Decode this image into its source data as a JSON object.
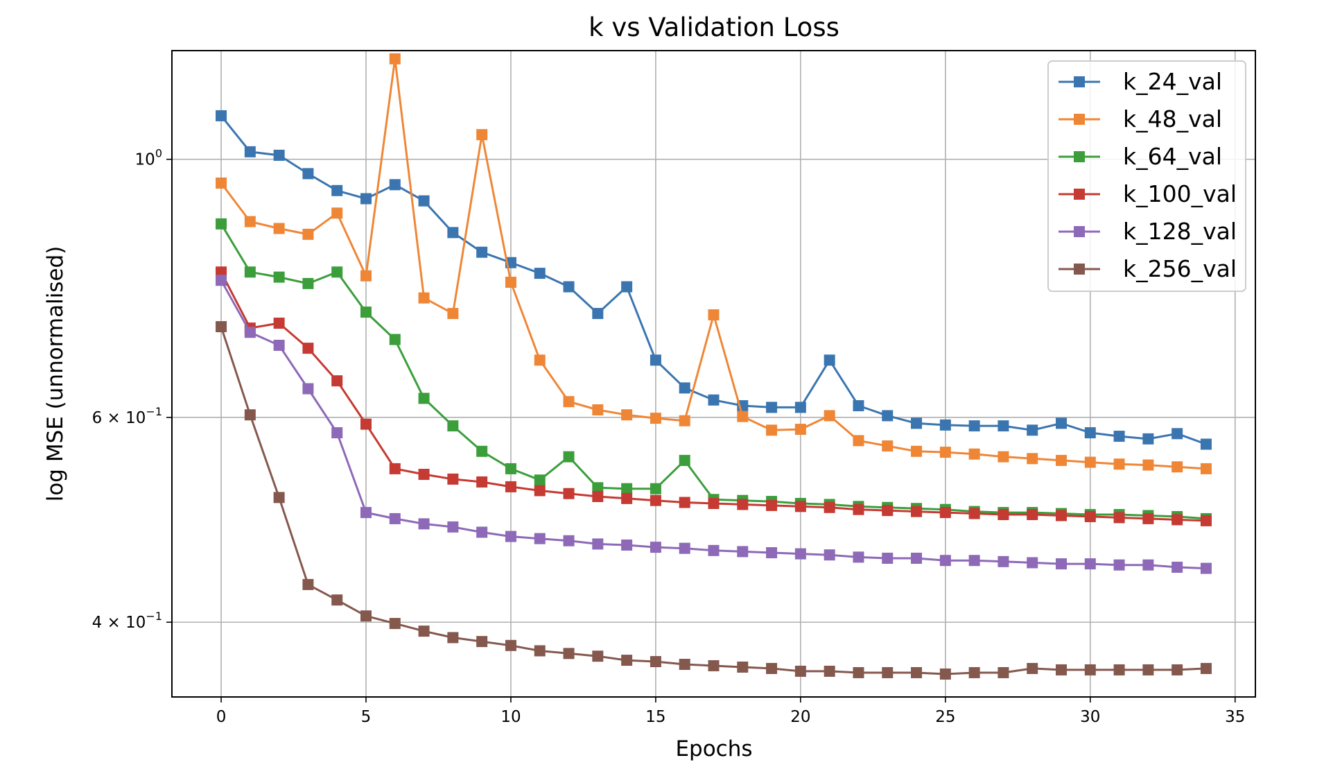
{
  "chart_data": {
    "type": "line",
    "title": "k vs Validation Loss",
    "xlabel": "Epochs",
    "ylabel": "log MSE (unnormalised)",
    "y_scale": "log",
    "xlim": [
      -1.7,
      35.7
    ],
    "ylim": [
      0.345,
      1.24
    ],
    "x_ticks": [
      0,
      5,
      10,
      15,
      20,
      25,
      30,
      35
    ],
    "x_tick_labels": [
      "0",
      "5",
      "10",
      "15",
      "20",
      "25",
      "30",
      "35"
    ],
    "y_ticks": [
      {
        "value": 1.0,
        "base": "10",
        "exp": "0"
      },
      {
        "value": 0.6,
        "base": "6 × 10",
        "exp": "−1"
      },
      {
        "value": 0.4,
        "base": "4 × 10",
        "exp": "−1"
      }
    ],
    "grid": true,
    "legend_position": "top-right",
    "marker": "square",
    "x": [
      0,
      1,
      2,
      3,
      4,
      5,
      6,
      7,
      8,
      9,
      10,
      11,
      12,
      13,
      14,
      15,
      16,
      17,
      18,
      19,
      20,
      21,
      22,
      23,
      24,
      25,
      26,
      27,
      28,
      29,
      30,
      31,
      32,
      33,
      34
    ],
    "series": [
      {
        "name": "k_24_val",
        "color": "#3a75b0",
        "values": [
          1.09,
          1.015,
          1.008,
          0.972,
          0.94,
          0.925,
          0.951,
          0.921,
          0.865,
          0.832,
          0.815,
          0.798,
          0.777,
          0.737,
          0.777,
          0.672,
          0.636,
          0.621,
          0.614,
          0.612,
          0.612,
          0.672,
          0.614,
          0.602,
          0.593,
          0.591,
          0.59,
          0.59,
          0.585,
          0.593,
          0.582,
          0.578,
          0.575,
          0.581,
          0.569
        ]
      },
      {
        "name": "k_48_val",
        "color": "#ef8636",
        "values": [
          0.954,
          0.884,
          0.872,
          0.862,
          0.899,
          0.794,
          1.22,
          0.76,
          0.737,
          1.05,
          0.784,
          0.672,
          0.619,
          0.609,
          0.603,
          0.599,
          0.596,
          0.735,
          0.601,
          0.585,
          0.586,
          0.602,
          0.573,
          0.567,
          0.561,
          0.56,
          0.558,
          0.555,
          0.553,
          0.551,
          0.549,
          0.547,
          0.546,
          0.544,
          0.542
        ]
      },
      {
        "name": "k_64_val",
        "color": "#3b9e3b",
        "values": [
          0.88,
          0.8,
          0.792,
          0.782,
          0.8,
          0.739,
          0.7,
          0.623,
          0.59,
          0.561,
          0.542,
          0.53,
          0.555,
          0.522,
          0.521,
          0.521,
          0.551,
          0.51,
          0.509,
          0.508,
          0.506,
          0.505,
          0.503,
          0.502,
          0.501,
          0.5,
          0.498,
          0.497,
          0.497,
          0.496,
          0.495,
          0.495,
          0.494,
          0.493,
          0.491
        ]
      },
      {
        "name": "k_100_val",
        "color": "#c53a32",
        "values": [
          0.8,
          0.716,
          0.723,
          0.688,
          0.645,
          0.592,
          0.542,
          0.536,
          0.531,
          0.528,
          0.523,
          0.519,
          0.516,
          0.513,
          0.511,
          0.509,
          0.507,
          0.506,
          0.505,
          0.504,
          0.503,
          0.502,
          0.5,
          0.499,
          0.498,
          0.497,
          0.496,
          0.495,
          0.495,
          0.494,
          0.493,
          0.492,
          0.491,
          0.49,
          0.489
        ]
      },
      {
        "name": "k_128_val",
        "color": "#8d69b8",
        "values": [
          0.787,
          0.71,
          0.692,
          0.635,
          0.582,
          0.497,
          0.491,
          0.486,
          0.483,
          0.478,
          0.474,
          0.472,
          0.47,
          0.467,
          0.466,
          0.464,
          0.463,
          0.461,
          0.46,
          0.459,
          0.458,
          0.457,
          0.455,
          0.454,
          0.454,
          0.452,
          0.452,
          0.451,
          0.45,
          0.449,
          0.449,
          0.448,
          0.448,
          0.446,
          0.445
        ]
      },
      {
        "name": "k_256_val",
        "color": "#85584e",
        "values": [
          0.718,
          0.603,
          0.512,
          0.431,
          0.418,
          0.405,
          0.399,
          0.393,
          0.388,
          0.385,
          0.382,
          0.378,
          0.376,
          0.374,
          0.371,
          0.37,
          0.368,
          0.367,
          0.366,
          0.365,
          0.363,
          0.363,
          0.362,
          0.362,
          0.362,
          0.361,
          0.362,
          0.362,
          0.365,
          0.364,
          0.364,
          0.364,
          0.364,
          0.364,
          0.365
        ]
      }
    ]
  }
}
